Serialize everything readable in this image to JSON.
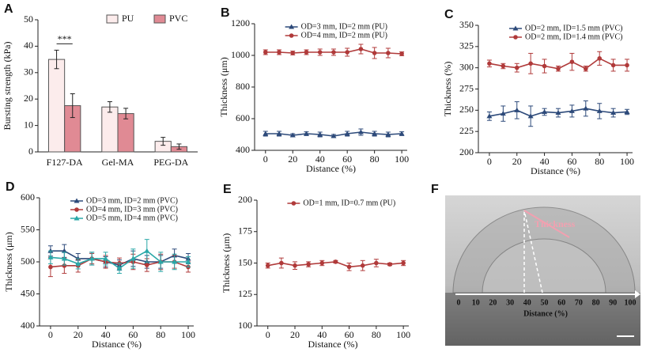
{
  "chart_data": [
    {
      "type": "bar",
      "panel_label": "A",
      "ylabel": "Bursting strength (kPa)",
      "categories": [
        "F127-DA",
        "Gel-MA",
        "PEG-DA"
      ],
      "series": [
        {
          "name": "PU",
          "color": "#fcecec",
          "values": [
            35,
            17,
            4
          ],
          "errors": [
            3.5,
            2,
            1.5
          ]
        },
        {
          "name": "PVC",
          "color": "#e08a94",
          "values": [
            17.5,
            14.5,
            2
          ],
          "errors": [
            4.5,
            2,
            1
          ]
        }
      ],
      "ylim": [
        0,
        50
      ],
      "yticks": [
        0,
        10,
        20,
        30,
        40,
        50
      ],
      "legend": "upper right",
      "annotation": "***"
    },
    {
      "type": "line",
      "panel_label": "B",
      "xlabel": "Distance (%)",
      "ylabel": "Thickness (μm)",
      "x": [
        0,
        10,
        20,
        30,
        40,
        50,
        60,
        70,
        80,
        90,
        100
      ],
      "series": [
        {
          "name": "OD=3 mm, ID=2 mm (PU)",
          "color": "#2d4a7a",
          "marker": "triangle",
          "values": [
            505,
            505,
            495,
            505,
            500,
            490,
            505,
            515,
            505,
            500,
            505
          ],
          "errors": [
            15,
            15,
            10,
            12,
            15,
            10,
            15,
            20,
            15,
            15,
            12
          ]
        },
        {
          "name": "OD=4 mm, ID=2 mm (PU)",
          "color": "#b03a3a",
          "marker": "circle",
          "values": [
            1020,
            1020,
            1015,
            1020,
            1020,
            1020,
            1020,
            1040,
            1015,
            1015,
            1010
          ],
          "errors": [
            15,
            15,
            12,
            15,
            20,
            20,
            25,
            30,
            35,
            30,
            12
          ]
        }
      ],
      "xlim": [
        -8,
        104
      ],
      "xticks": [
        0,
        20,
        40,
        60,
        80,
        100
      ],
      "ylim": [
        400,
        1200
      ],
      "yticks": [
        400,
        600,
        800,
        1000,
        1200
      ],
      "legend": "upper center"
    },
    {
      "type": "line",
      "panel_label": "C",
      "xlabel": "Distance (%)",
      "ylabel": "Thickness (%)",
      "x": [
        0,
        10,
        20,
        30,
        40,
        50,
        60,
        70,
        80,
        90,
        100
      ],
      "series": [
        {
          "name": "OD=2 mm, ID=1.5 mm (PVC)",
          "color": "#2d4a7a",
          "marker": "triangle",
          "values": [
            243,
            246,
            250,
            243,
            248,
            247,
            249,
            252,
            249,
            247,
            248
          ],
          "errors": [
            5,
            9,
            10,
            12,
            4,
            5,
            7,
            9,
            9,
            5,
            3
          ]
        },
        {
          "name": "OD=2 mm, ID=1.4 mm (PVC)",
          "color": "#b03a3a",
          "marker": "circle",
          "values": [
            305,
            302,
            300,
            305,
            302,
            299,
            307,
            299,
            311,
            303,
            303
          ],
          "errors": [
            4,
            3,
            5,
            12,
            8,
            3,
            10,
            3,
            8,
            7,
            7
          ]
        }
      ],
      "xlim": [
        -8,
        104
      ],
      "xticks": [
        0,
        20,
        40,
        60,
        80,
        100
      ],
      "ylim": [
        200,
        350
      ],
      "yticks": [
        200,
        225,
        250,
        275,
        300,
        325,
        350
      ],
      "legend": "upper center"
    },
    {
      "type": "line",
      "panel_label": "D",
      "xlabel": "Distance (%)",
      "ylabel": "Thickness (μm)",
      "x": [
        0,
        10,
        20,
        30,
        40,
        50,
        60,
        70,
        80,
        90,
        100
      ],
      "series": [
        {
          "name": "OD=3 mm, ID=2 mm (PVC)",
          "color": "#2d4a7a",
          "marker": "triangle",
          "values": [
            517,
            517,
            505,
            505,
            500,
            495,
            505,
            500,
            500,
            510,
            505
          ],
          "errors": [
            8,
            10,
            8,
            10,
            8,
            8,
            12,
            10,
            10,
            10,
            8
          ]
        },
        {
          "name": "OD=4 mm, ID=3 mm (PVC)",
          "color": "#b03a3a",
          "marker": "circle",
          "values": [
            492,
            494,
            494,
            505,
            500,
            498,
            500,
            495,
            500,
            500,
            492
          ],
          "errors": [
            15,
            12,
            10,
            8,
            10,
            8,
            12,
            10,
            12,
            10,
            8
          ]
        },
        {
          "name": "OD=5 mm, ID=4 mm (PVC)",
          "color": "#2aa8a8",
          "marker": "triangle",
          "values": [
            507,
            505,
            497,
            505,
            505,
            490,
            505,
            517,
            500,
            500,
            500
          ],
          "errors": [
            10,
            10,
            8,
            10,
            10,
            8,
            15,
            18,
            15,
            12,
            8
          ]
        }
      ],
      "xlim": [
        -8,
        104
      ],
      "xticks": [
        0,
        20,
        40,
        60,
        80,
        100
      ],
      "ylim": [
        400,
        600
      ],
      "yticks": [
        400,
        450,
        500,
        550,
        600
      ],
      "legend": "upper center"
    },
    {
      "type": "line",
      "panel_label": "E",
      "xlabel": "Distance (%)",
      "ylabel": "Thickness (μm)",
      "x": [
        0,
        10,
        20,
        30,
        40,
        50,
        60,
        70,
        80,
        90,
        100
      ],
      "series": [
        {
          "name": "OD=1 mm, ID=0.7 mm (PU)",
          "color": "#b03a3a",
          "marker": "circle",
          "values": [
            148,
            150,
            148,
            149,
            150,
            151,
            147,
            148,
            150,
            149,
            150
          ],
          "errors": [
            2,
            4,
            3,
            2,
            2,
            1,
            3,
            4,
            3,
            1,
            2
          ]
        }
      ],
      "xlim": [
        -8,
        104
      ],
      "xticks": [
        0,
        20,
        40,
        60,
        80,
        100
      ],
      "ylim": [
        100,
        200
      ],
      "yticks": [
        100,
        125,
        150,
        175,
        200
      ],
      "legend": "upper center"
    }
  ],
  "image_panel": {
    "label": "F",
    "annotation": "Thickness",
    "axis_ticks": [
      0,
      10,
      20,
      30,
      40,
      50,
      60,
      70,
      80,
      90,
      100
    ],
    "axis_label": "Distance (%)"
  }
}
